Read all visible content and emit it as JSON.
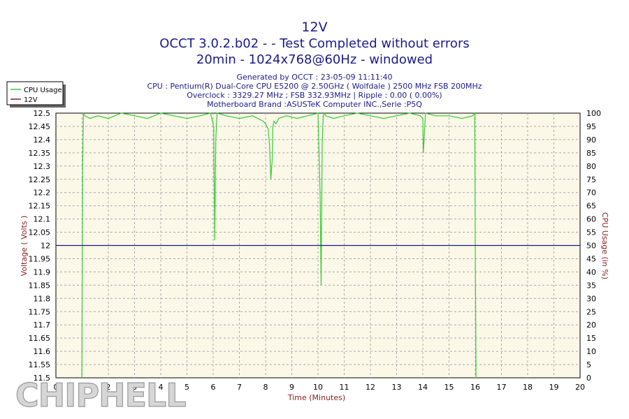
{
  "chart_data": {
    "type": "line",
    "title": "12V",
    "subtitle_lines": [
      "OCCT 3.0.2.b02 -  - Test Completed without errors",
      "20min - 1024x768@60Hz - windowed"
    ],
    "info_lines": [
      "Generated by OCCT : 23-05-09 11:11:40",
      "CPU : Pentium(R) Dual-Core CPU E5200 @ 2.50GHz ( Wolfdale ) 2500 MHz FSB 200MHz",
      "Overclock : 3329.27 MHz ; FSB 332.93MHz | Ripple : 0.00 ( 0.00%)",
      "Motherboard Brand :ASUSTeK Computer INC.,Serie :P5Q"
    ],
    "xlabel": "Time (Minutes)",
    "ylabel": "Voltage ( Volts )",
    "y2label": "CPU Usage (in %)",
    "xlim": [
      0,
      20
    ],
    "ylim": [
      11.5,
      12.5
    ],
    "y2lim": [
      0,
      100
    ],
    "x_ticks": [
      "0",
      "1",
      "2",
      "3",
      "4",
      "5",
      "6",
      "7",
      "8",
      "9",
      "10",
      "11",
      "12",
      "13",
      "14",
      "15",
      "16",
      "17",
      "18",
      "19",
      "20"
    ],
    "y_ticks": [
      "11.5",
      "11.55",
      "11.6",
      "11.65",
      "11.7",
      "11.75",
      "11.8",
      "11.85",
      "11.9",
      "11.95",
      "12",
      "12.05",
      "12.1",
      "12.15",
      "12.2",
      "12.25",
      "12.3",
      "12.35",
      "12.4",
      "12.45",
      "12.5"
    ],
    "y2_ticks": [
      "0",
      "5",
      "10",
      "15",
      "20",
      "25",
      "30",
      "35",
      "40",
      "45",
      "50",
      "55",
      "60",
      "65",
      "70",
      "75",
      "80",
      "85",
      "90",
      "95",
      "100"
    ],
    "grid": true,
    "legend_position": "top-left",
    "colors": {
      "cpu_usage": "#33cc33",
      "voltage": "#1a1a8c",
      "plot_background": "#fbf8e8",
      "grid": "#a8a8a8",
      "axis_title": "#8b2020",
      "title": "#1a1a8c"
    },
    "series": [
      {
        "name": "CPU Usage",
        "axis": "right",
        "x": [
          0.99,
          1.0,
          1.02,
          1.05,
          1.1,
          1.3,
          1.6,
          2.0,
          2.5,
          3.0,
          3.5,
          4.0,
          4.5,
          5.0,
          5.5,
          5.9,
          6.02,
          6.06,
          6.1,
          6.15,
          6.5,
          7.0,
          7.5,
          7.9,
          8.0,
          8.1,
          8.15,
          8.2,
          8.25,
          8.28,
          8.32,
          8.4,
          8.5,
          8.8,
          9.2,
          9.6,
          10.0,
          10.08,
          10.12,
          10.16,
          10.2,
          10.25,
          10.3,
          10.6,
          11.0,
          11.5,
          12.0,
          12.5,
          13.0,
          13.5,
          13.9,
          14.0,
          14.02,
          14.06,
          14.1,
          14.5,
          15.0,
          15.5,
          15.9,
          15.98,
          16.0,
          16.03
        ],
        "values": [
          0,
          30,
          80,
          100,
          99,
          98,
          99,
          98,
          100,
          99,
          98,
          100,
          99,
          98,
          99,
          100,
          95,
          52,
          90,
          100,
          99,
          98,
          99,
          97,
          96,
          94,
          88,
          75,
          82,
          95,
          97,
          96,
          98,
          99,
          98,
          99,
          100,
          70,
          35,
          88,
          99,
          100,
          99,
          98,
          99,
          100,
          99,
          98,
          99,
          100,
          99,
          98,
          85,
          92,
          100,
          99,
          99,
          98,
          99,
          100,
          50,
          0
        ]
      },
      {
        "name": "12V",
        "axis": "left",
        "x": [
          0,
          20
        ],
        "values": [
          12.0,
          12.0
        ]
      }
    ]
  },
  "watermark": "CHIPHELL"
}
